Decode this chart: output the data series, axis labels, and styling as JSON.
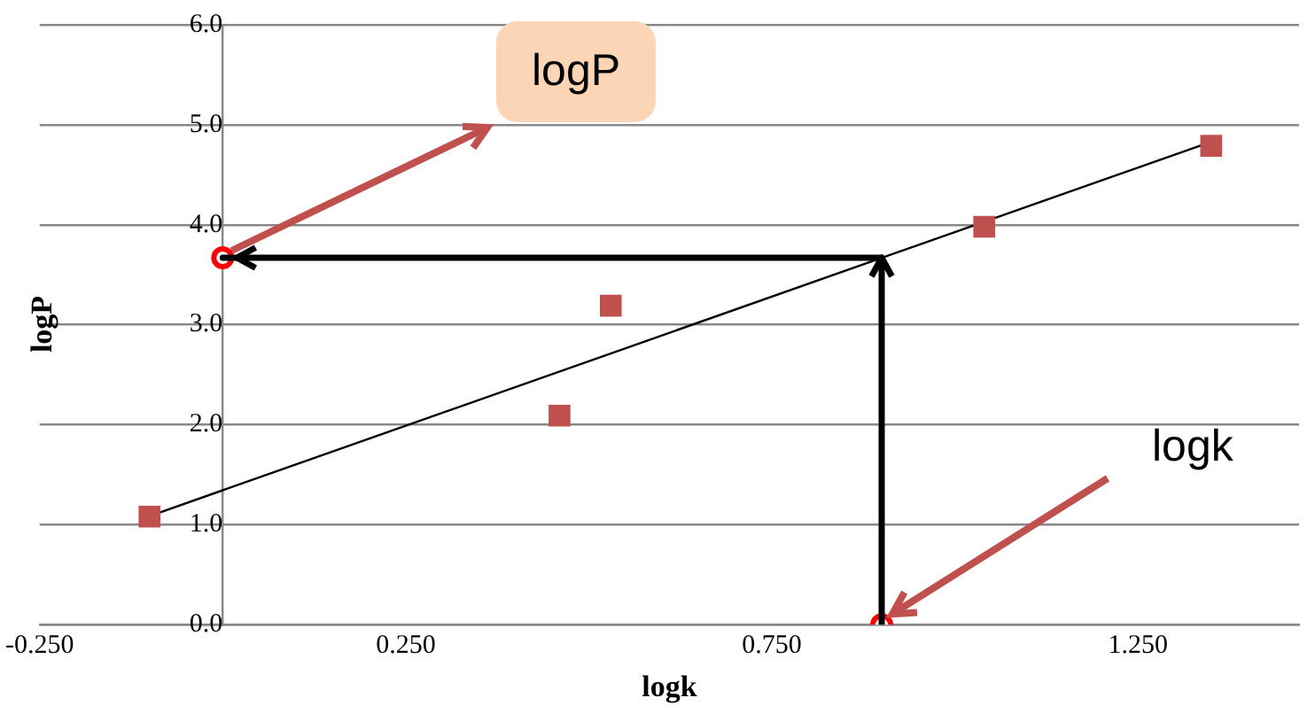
{
  "chart_data": {
    "type": "scatter",
    "xlabel": "logk",
    "ylabel": "logP",
    "xlim": [
      -0.25,
      1.47
    ],
    "xticks": [
      {
        "value": -0.25,
        "label": "-0.250"
      },
      {
        "value": 0.25,
        "label": "0.250"
      },
      {
        "value": 0.75,
        "label": "0.750"
      },
      {
        "value": 1.25,
        "label": "1.250"
      }
    ],
    "ylim": [
      0,
      6
    ],
    "yticks": [
      {
        "value": 0,
        "label": "0.0"
      },
      {
        "value": 1,
        "label": "1.0"
      },
      {
        "value": 2,
        "label": "2.0"
      },
      {
        "value": 3,
        "label": "3.0"
      },
      {
        "value": 4,
        "label": "4.0"
      },
      {
        "value": 5,
        "label": "5.0"
      },
      {
        "value": 6,
        "label": "6.0"
      }
    ],
    "grid": "y",
    "legend": false,
    "series": [
      {
        "color": "#c0504d",
        "marker": "square",
        "x": [
          -0.1,
          0.46,
          0.53,
          1.04,
          1.35
        ],
        "values": [
          1.08,
          2.09,
          3.19,
          3.98,
          4.79
        ]
      },
      {
        "type": "line",
        "color": "#000000",
        "marker": "none",
        "x": [
          -0.11,
          1.35
        ],
        "values": [
          1.06,
          4.83
        ]
      },
      {
        "type": "line",
        "color": "#000000",
        "marker": "none",
        "line_style": "solid",
        "x": [
          0.9,
          0.9,
          0
        ],
        "values": [
          0,
          3.67,
          3.67
        ]
      },
      {
        "color": "#ff0000",
        "marker": "circle",
        "x": [
          0,
          0.9
        ],
        "values": [
          3.67,
          0
        ]
      }
    ],
    "annotations": [
      {
        "text": "logP",
        "x": 0,
        "y": 3.67
      },
      {
        "text": "logk",
        "x": 0.9,
        "y": 0
      }
    ]
  }
}
